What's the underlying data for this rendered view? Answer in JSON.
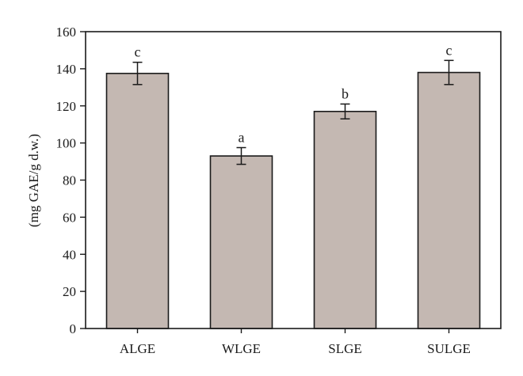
{
  "chart_data": {
    "type": "bar",
    "title": "",
    "xlabel": "",
    "ylabel": "(mg GAE/g d.w.)",
    "ylim": [
      0,
      160
    ],
    "yticks": [
      0,
      20,
      40,
      60,
      80,
      100,
      120,
      140,
      160
    ],
    "categories": [
      "ALGE",
      "WLGE",
      "SLGE",
      "SULGE"
    ],
    "values": [
      137.5,
      93,
      117,
      138
    ],
    "errors": [
      6,
      4.5,
      4,
      6.5
    ],
    "significance": [
      "c",
      "a",
      "b",
      "c"
    ],
    "bar_color": "#c4b8b2",
    "edge_color": "#1a1a1a",
    "grid": false,
    "legend": "none"
  }
}
